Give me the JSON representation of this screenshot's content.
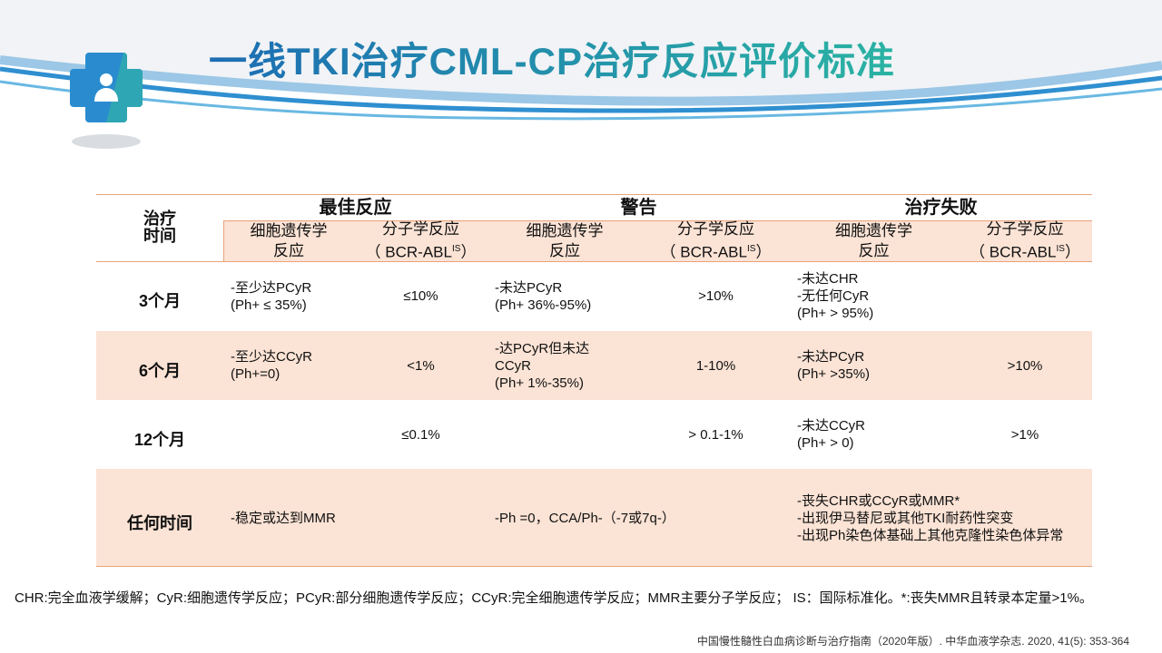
{
  "title": "一线TKI治疗CML-CP治疗反应评价标准",
  "table": {
    "time_header": [
      "治疗",
      "时间"
    ],
    "groups": [
      "最佳反应",
      "警告",
      "治疗失败"
    ],
    "subheaders": [
      {
        "lines": [
          "细胞遗传学",
          "反应"
        ]
      },
      {
        "lines": [
          "分子学反应",
          "（ BCR-ABL"
        ],
        "sup": "IS",
        "after": "）"
      },
      {
        "lines": [
          "细胞遗传学",
          "反应"
        ]
      },
      {
        "lines": [
          "分子学反应",
          "（ BCR-ABL"
        ],
        "sup": "IS",
        "after": "）"
      },
      {
        "lines": [
          "细胞遗传学",
          "反应"
        ]
      },
      {
        "lines": [
          "分子学反应",
          "（ BCR-ABL"
        ],
        "sup": "IS",
        "after": "）"
      }
    ],
    "rows": [
      {
        "label": "3个月",
        "cells": [
          [
            "-至少达PCyR",
            "(Ph+ ≤ 35%)"
          ],
          [
            "≤10%"
          ],
          [
            "-未达PCyR",
            "(Ph+ 36%-95%)"
          ],
          [
            ">10%"
          ],
          [
            "-未达CHR",
            "-无任何CyR",
            "(Ph+ > 95%)"
          ],
          []
        ]
      },
      {
        "label": "6个月",
        "cells": [
          [
            "-至少达CCyR",
            "(Ph+=0)"
          ],
          [
            "<1%"
          ],
          [
            "-达PCyR但未达",
            "CCyR",
            "(Ph+ 1%-35%)"
          ],
          [
            "1-10%"
          ],
          [
            "-未达PCyR",
            "(Ph+ >35%)"
          ],
          [
            ">10%"
          ]
        ]
      },
      {
        "label": "12个月",
        "cells": [
          [],
          [
            "≤0.1%"
          ],
          [],
          [
            "> 0.1-1%"
          ],
          [
            "-未达CCyR",
            "(Ph+ > 0)"
          ],
          [
            ">1%"
          ]
        ]
      },
      {
        "label": "任何时间",
        "cells": [
          [
            "-稳定或达到MMR"
          ],
          [],
          [
            "-Ph =0，CCA/Ph-（-7或7q-）"
          ],
          [],
          [
            "-丧失CHR或CCyR或MMR*",
            "-出现伊马替尼或其他TKI耐药性突变",
            "-出现Ph染色体基础上其他克隆性染色体异常"
          ],
          []
        ]
      }
    ]
  },
  "footnote": "CHR:完全血液学缓解；CyR:细胞遗传学反应；PCyR:部分细胞遗传学反应；CCyR:完全细胞遗传学反应；MMR主要分子学反应； IS：国际标准化。*:丧失MMR且转录本定量>1%。",
  "citation": "中国慢性髓性白血病诊断与治疗指南（2020年版）. 中华血液学杂志. 2020, 41(5): 353-364"
}
